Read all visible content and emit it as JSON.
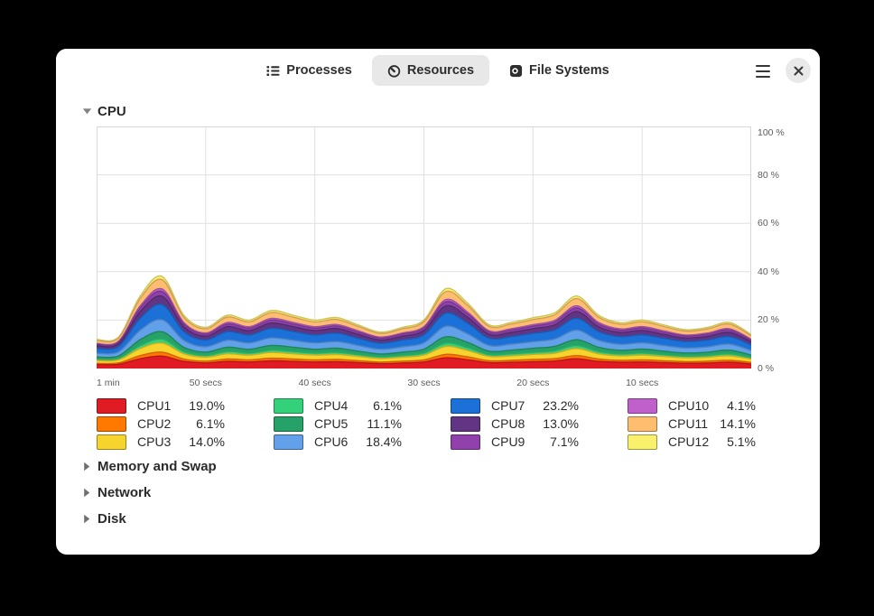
{
  "app": {
    "tabs": [
      {
        "label": "Processes",
        "icon": "process-list-icon",
        "active": false
      },
      {
        "label": "Resources",
        "icon": "speedometer-icon",
        "active": true
      },
      {
        "label": "File Systems",
        "icon": "hard-disk-icon",
        "active": false
      }
    ],
    "menu_icon": "hamburger-menu-icon",
    "close_icon": "close-icon"
  },
  "cpu_section": {
    "label": "CPU",
    "expanded": true
  },
  "other_sections": [
    {
      "label": "Memory and Swap",
      "expanded": false
    },
    {
      "label": "Network",
      "expanded": false
    },
    {
      "label": "Disk",
      "expanded": false
    }
  ],
  "chart_data": {
    "type": "area",
    "stacked": true,
    "title": "CPU",
    "unit": "%",
    "ylim": [
      0,
      100
    ],
    "grid": true,
    "legend_position": "bottom",
    "y_tick_labels": [
      "100 %",
      "80 %",
      "60 %",
      "40 %",
      "20 %",
      "0 %"
    ],
    "x_tick_labels": [
      "1 min",
      "50 secs",
      "40 secs",
      "30 secs",
      "20 secs",
      "10 secs"
    ],
    "x_range_secs": 60,
    "sample_interval_secs": 2,
    "stack_note": "stack height = sum(per-cpu %)/12",
    "series": [
      {
        "name": "CPU1",
        "color": "#e01b24",
        "current": "19.0%",
        "values": [
          19.4,
          21.0,
          48.4,
          61.3,
          35.5,
          27.4,
          35.5,
          32.3,
          38.7,
          35.5,
          32.3,
          33.9,
          29.1,
          24.2,
          27.4,
          32.3,
          53.2,
          43.6,
          29.1,
          30.7,
          33.9,
          37.1,
          48.4,
          35.5,
          30.7,
          32.3,
          29.1,
          25.8,
          27.4,
          30.7,
          22.6
        ]
      },
      {
        "name": "CPU2",
        "color": "#ff7800",
        "current": "6.1%",
        "values": [
          6.2,
          6.7,
          15.5,
          19.7,
          11.4,
          8.8,
          11.4,
          10.4,
          12.4,
          11.4,
          10.4,
          10.9,
          9.3,
          7.8,
          8.8,
          10.4,
          17.1,
          14.0,
          9.3,
          9.8,
          10.9,
          11.9,
          15.5,
          11.4,
          9.8,
          10.4,
          9.3,
          8.3,
          8.8,
          9.8,
          7.3
        ]
      },
      {
        "name": "CPU3",
        "color": "#f6d32d",
        "current": "14.0%",
        "values": [
          14.3,
          15.5,
          35.7,
          45.2,
          26.2,
          20.2,
          26.2,
          23.8,
          28.5,
          26.2,
          23.8,
          25.0,
          21.4,
          17.8,
          20.2,
          23.8,
          39.2,
          32.1,
          21.4,
          22.6,
          25.0,
          27.3,
          35.7,
          26.2,
          22.6,
          23.8,
          21.4,
          19.0,
          20.2,
          22.6,
          16.6
        ]
      },
      {
        "name": "CPU4",
        "color": "#33d17a",
        "current": "6.1%",
        "values": [
          6.0,
          6.9,
          15.2,
          20.1,
          11.0,
          9.1,
          11.8,
          10.1,
          12.0,
          11.8,
          10.1,
          11.2,
          9.0,
          8.1,
          8.5,
          10.8,
          16.7,
          14.4,
          9.0,
          10.1,
          10.5,
          12.3,
          15.1,
          11.8,
          9.4,
          10.8,
          9.0,
          8.6,
          8.5,
          10.1,
          7.1
        ]
      },
      {
        "name": "CPU5",
        "color": "#26a269",
        "current": "11.1%",
        "values": [
          11.3,
          12.3,
          28.3,
          35.8,
          20.7,
          16.0,
          20.7,
          18.8,
          22.6,
          20.7,
          18.8,
          19.8,
          17.0,
          14.1,
          16.0,
          18.8,
          31.1,
          25.5,
          17.0,
          17.9,
          19.8,
          21.7,
          28.3,
          20.7,
          17.9,
          18.8,
          17.0,
          15.1,
          16.0,
          17.9,
          13.2
        ]
      },
      {
        "name": "CPU6",
        "color": "#62a0ea",
        "current": "18.4%",
        "values": [
          18.7,
          20.3,
          46.9,
          59.4,
          34.4,
          26.6,
          34.4,
          31.2,
          37.5,
          34.4,
          31.2,
          32.8,
          28.1,
          23.4,
          26.6,
          31.2,
          51.6,
          42.2,
          28.1,
          29.7,
          32.8,
          35.9,
          46.9,
          34.4,
          29.7,
          31.2,
          28.1,
          25.0,
          26.6,
          29.7,
          21.9
        ]
      },
      {
        "name": "CPU7",
        "color": "#1c71d8",
        "current": "23.2%",
        "values": [
          23.6,
          25.6,
          59.1,
          74.9,
          43.3,
          33.5,
          43.3,
          39.4,
          47.3,
          43.3,
          39.4,
          41.4,
          35.5,
          29.6,
          33.5,
          39.4,
          65.0,
          53.2,
          35.5,
          37.4,
          41.4,
          45.3,
          59.1,
          43.3,
          37.4,
          39.4,
          35.5,
          31.5,
          33.5,
          37.4,
          27.6
        ]
      },
      {
        "name": "CPU8",
        "color": "#613583",
        "current": "13.0%",
        "values": [
          13.2,
          14.4,
          33.1,
          42.0,
          24.3,
          18.8,
          24.3,
          22.1,
          26.5,
          24.3,
          22.1,
          23.2,
          19.9,
          16.6,
          18.8,
          22.1,
          36.4,
          29.8,
          19.9,
          21.0,
          23.2,
          25.4,
          33.1,
          24.3,
          21.0,
          22.1,
          19.9,
          17.7,
          18.8,
          21.0,
          15.5
        ]
      },
      {
        "name": "CPU9",
        "color": "#9141ac",
        "current": "7.1%",
        "values": [
          7.2,
          7.8,
          18.1,
          22.9,
          13.3,
          10.3,
          13.3,
          12.1,
          14.5,
          13.3,
          12.1,
          12.7,
          10.9,
          9.0,
          10.3,
          12.1,
          19.9,
          16.3,
          10.9,
          11.5,
          12.7,
          13.9,
          18.1,
          13.3,
          11.5,
          12.1,
          10.9,
          9.6,
          10.3,
          11.5,
          8.4
        ]
      },
      {
        "name": "CPU10",
        "color": "#c061cb",
        "current": "4.1%",
        "values": [
          4.2,
          4.5,
          10.4,
          13.2,
          7.7,
          5.9,
          7.7,
          7.0,
          8.4,
          7.7,
          7.0,
          7.3,
          6.3,
          5.2,
          5.9,
          7.0,
          11.5,
          9.4,
          6.3,
          6.6,
          7.3,
          8.0,
          10.4,
          7.7,
          6.6,
          7.0,
          6.3,
          5.6,
          5.9,
          6.6,
          4.9
        ]
      },
      {
        "name": "CPU11",
        "color": "#ffbe6f",
        "current": "14.1%",
        "values": [
          14.4,
          15.6,
          35.9,
          45.5,
          26.3,
          20.4,
          26.3,
          23.9,
          28.7,
          26.3,
          23.9,
          25.1,
          21.6,
          18.0,
          20.4,
          23.9,
          39.5,
          32.3,
          21.6,
          22.8,
          25.1,
          27.5,
          35.9,
          26.3,
          22.8,
          23.9,
          21.6,
          19.2,
          20.4,
          22.8,
          16.8
        ]
      },
      {
        "name": "CPU12",
        "color": "#f9f06b",
        "current": "5.1%",
        "values": [
          5.2,
          5.6,
          13.0,
          16.5,
          9.5,
          7.4,
          9.5,
          8.7,
          10.4,
          9.5,
          8.7,
          9.1,
          7.8,
          6.5,
          7.4,
          8.7,
          14.3,
          11.7,
          7.8,
          8.2,
          9.1,
          10.0,
          13.0,
          9.5,
          8.2,
          8.7,
          7.8,
          6.9,
          7.4,
          8.2,
          6.1
        ]
      }
    ]
  }
}
